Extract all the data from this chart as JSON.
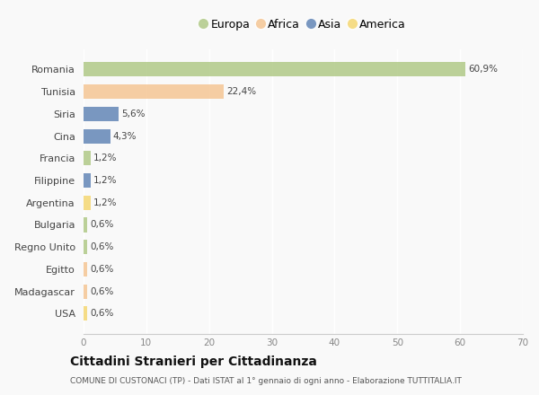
{
  "categories": [
    "Romania",
    "Tunisia",
    "Siria",
    "Cina",
    "Francia",
    "Filippine",
    "Argentina",
    "Bulgaria",
    "Regno Unito",
    "Egitto",
    "Madagascar",
    "USA"
  ],
  "values": [
    60.9,
    22.4,
    5.6,
    4.3,
    1.2,
    1.2,
    1.2,
    0.6,
    0.6,
    0.6,
    0.6,
    0.6
  ],
  "labels": [
    "60,9%",
    "22,4%",
    "5,6%",
    "4,3%",
    "1,2%",
    "1,2%",
    "1,2%",
    "0,6%",
    "0,6%",
    "0,6%",
    "0,6%",
    "0,6%"
  ],
  "colors": [
    "#b5cc8e",
    "#f5c99a",
    "#6b8cba",
    "#6b8cba",
    "#b5cc8e",
    "#6b8cba",
    "#f5d97a",
    "#b5cc8e",
    "#b5cc8e",
    "#f5c99a",
    "#f5c99a",
    "#f5d97a"
  ],
  "legend": [
    {
      "label": "Europa",
      "color": "#b5cc8e"
    },
    {
      "label": "Africa",
      "color": "#f5c99a"
    },
    {
      "label": "Asia",
      "color": "#6b8cba"
    },
    {
      "label": "America",
      "color": "#f5d97a"
    }
  ],
  "xlim": [
    0,
    70
  ],
  "xticks": [
    0,
    10,
    20,
    30,
    40,
    50,
    60,
    70
  ],
  "title": "Cittadini Stranieri per Cittadinanza",
  "subtitle": "COMUNE DI CUSTONACI (TP) - Dati ISTAT al 1° gennaio di ogni anno - Elaborazione TUTTITALIA.IT",
  "bg_color": "#f9f9f9",
  "grid_color": "#ffffff",
  "bar_height": 0.65,
  "label_fontsize": 7.5,
  "ytick_fontsize": 8.0,
  "xtick_fontsize": 7.5
}
